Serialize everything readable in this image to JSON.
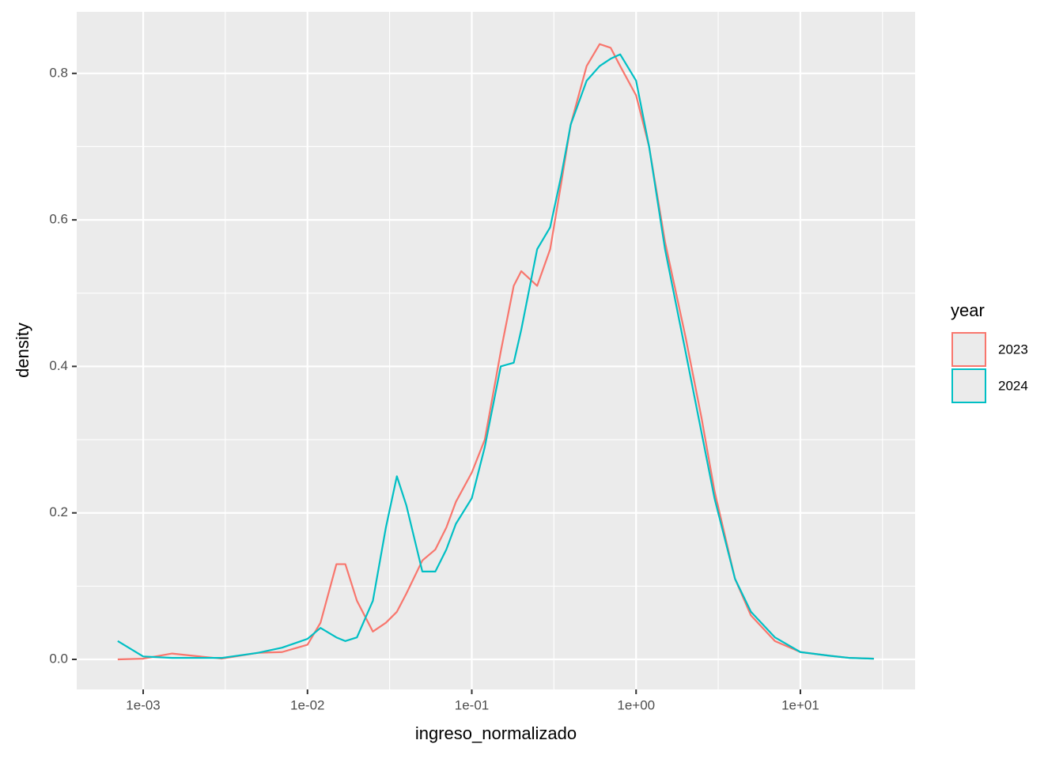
{
  "chart_data": {
    "type": "line",
    "x_label": "ingreso_normalizado",
    "y_label": "density",
    "xscale": "log",
    "x": [
      0.0007,
      0.001,
      0.0015,
      0.002,
      0.003,
      0.005,
      0.007,
      0.01,
      0.012,
      0.015,
      0.017,
      0.02,
      0.025,
      0.03,
      0.035,
      0.04,
      0.05,
      0.06,
      0.07,
      0.08,
      0.1,
      0.12,
      0.15,
      0.18,
      0.2,
      0.25,
      0.3,
      0.35,
      0.4,
      0.5,
      0.6,
      0.7,
      0.8,
      1,
      1.2,
      1.5,
      2,
      2.5,
      3,
      4,
      5,
      7,
      10,
      15,
      20,
      28
    ],
    "series": [
      {
        "name": "2023",
        "color": "#F8766D",
        "values": [
          0.0,
          0.001,
          0.008,
          0.005,
          0.001,
          0.009,
          0.01,
          0.02,
          0.05,
          0.13,
          0.13,
          0.08,
          0.038,
          0.05,
          0.065,
          0.09,
          0.135,
          0.15,
          0.18,
          0.215,
          0.255,
          0.3,
          0.42,
          0.51,
          0.53,
          0.51,
          0.56,
          0.65,
          0.73,
          0.81,
          0.84,
          0.835,
          0.81,
          0.77,
          0.7,
          0.57,
          0.44,
          0.33,
          0.23,
          0.11,
          0.06,
          0.025,
          0.01,
          0.005,
          0.002,
          0.001
        ]
      },
      {
        "name": "2024",
        "color": "#00BFC4",
        "values": [
          0.025,
          0.004,
          0.002,
          0.002,
          0.002,
          0.009,
          0.016,
          0.028,
          0.043,
          0.03,
          0.025,
          0.03,
          0.08,
          0.18,
          0.25,
          0.21,
          0.12,
          0.12,
          0.15,
          0.185,
          0.22,
          0.29,
          0.4,
          0.405,
          0.45,
          0.56,
          0.59,
          0.66,
          0.73,
          0.79,
          0.81,
          0.82,
          0.826,
          0.79,
          0.7,
          0.56,
          0.42,
          0.31,
          0.22,
          0.11,
          0.065,
          0.03,
          0.01,
          0.005,
          0.002,
          0.001
        ]
      }
    ],
    "legend_title": "year",
    "legend_position": "right",
    "xlim": [
      0.000394,
      49.9
    ],
    "ylim": [
      -0.041,
      0.884
    ],
    "xticks": [
      {
        "value": 0.001,
        "label": "1e-03"
      },
      {
        "value": 0.01,
        "label": "1e-02"
      },
      {
        "value": 0.1,
        "label": "1e-01"
      },
      {
        "value": 1,
        "label": "1e+00"
      },
      {
        "value": 10,
        "label": "1e+01"
      }
    ],
    "yticks": [
      {
        "value": 0,
        "label": "0.0"
      },
      0.2,
      0.4,
      0.6,
      0.8
    ],
    "x_minor_ticks": [
      0.00316,
      0.0316,
      0.316,
      3.16,
      31.6
    ],
    "y_minor_ticks": [
      0.1,
      0.3,
      0.5,
      0.7
    ],
    "grid": true
  }
}
